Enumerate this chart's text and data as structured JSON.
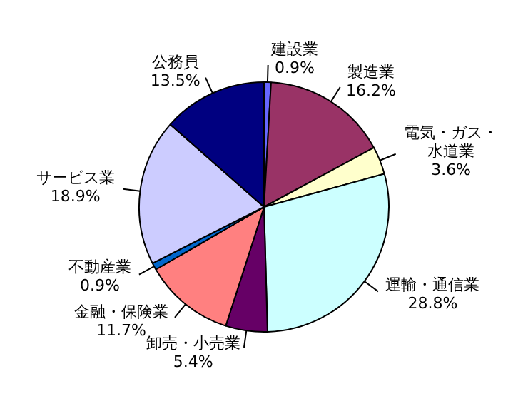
{
  "chart_data": {
    "type": "pie",
    "categories": [
      "建設業",
      "製造業",
      "電気・ガス・水道業",
      "運輸・通信業",
      "卸売・小売業",
      "金融・保険業",
      "不動産業",
      "サービス業",
      "公務員"
    ],
    "values": [
      0.9,
      16.2,
      3.6,
      28.8,
      5.4,
      11.7,
      0.9,
      18.9,
      13.5
    ],
    "value_labels": [
      "0.9%",
      "16.2%",
      "3.6%",
      "28.8%",
      "5.4%",
      "11.7%",
      "0.9%",
      "18.9%",
      "13.5%"
    ],
    "colors": [
      "#6666ff",
      "#993366",
      "#ffffcc",
      "#ccffff",
      "#660066",
      "#ff8080",
      "#0066cc",
      "#ccccff",
      "#000080"
    ],
    "legend": false
  }
}
